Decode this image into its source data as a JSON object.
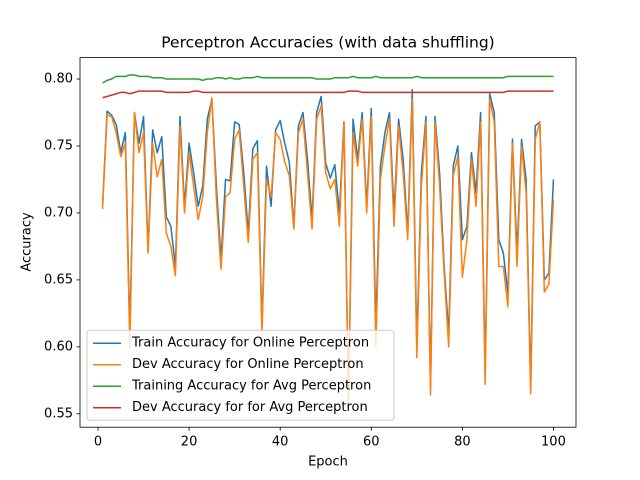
{
  "chart_data": {
    "type": "line",
    "title": "Perceptron Accuracies (with data shuffling)",
    "xlabel": "Epoch",
    "ylabel": "Accuracy",
    "x": [
      1,
      2,
      3,
      4,
      5,
      6,
      7,
      8,
      9,
      10,
      11,
      12,
      13,
      14,
      15,
      16,
      17,
      18,
      19,
      20,
      21,
      22,
      23,
      24,
      25,
      26,
      27,
      28,
      29,
      30,
      31,
      32,
      33,
      34,
      35,
      36,
      37,
      38,
      39,
      40,
      41,
      42,
      43,
      44,
      45,
      46,
      47,
      48,
      49,
      50,
      51,
      52,
      53,
      54,
      55,
      56,
      57,
      58,
      59,
      60,
      61,
      62,
      63,
      64,
      65,
      66,
      67,
      68,
      69,
      70,
      71,
      72,
      73,
      74,
      75,
      76,
      77,
      78,
      79,
      80,
      81,
      82,
      83,
      84,
      85,
      86,
      87,
      88,
      89,
      90,
      91,
      92,
      93,
      94,
      95,
      96,
      97,
      98,
      99,
      100
    ],
    "series": [
      {
        "name": "Train Accuracy for Online Perceptron",
        "color": "#1f77b4",
        "values": [
          0.705,
          0.776,
          0.773,
          0.766,
          0.745,
          0.76,
          0.61,
          0.775,
          0.752,
          0.772,
          0.672,
          0.762,
          0.745,
          0.757,
          0.697,
          0.69,
          0.66,
          0.772,
          0.705,
          0.752,
          0.73,
          0.705,
          0.72,
          0.77,
          0.785,
          0.72,
          0.665,
          0.725,
          0.724,
          0.768,
          0.766,
          0.73,
          0.685,
          0.748,
          0.754,
          0.615,
          0.735,
          0.705,
          0.762,
          0.769,
          0.752,
          0.738,
          0.69,
          0.765,
          0.775,
          0.74,
          0.695,
          0.775,
          0.787,
          0.737,
          0.726,
          0.736,
          0.7,
          0.768,
          0.56,
          0.77,
          0.74,
          0.775,
          0.705,
          0.778,
          0.615,
          0.735,
          0.76,
          0.775,
          0.7,
          0.77,
          0.74,
          0.685,
          0.792,
          0.6,
          0.73,
          0.772,
          0.57,
          0.772,
          0.73,
          0.66,
          0.61,
          0.735,
          0.75,
          0.68,
          0.69,
          0.745,
          0.715,
          0.775,
          0.58,
          0.789,
          0.775,
          0.68,
          0.67,
          0.64,
          0.755,
          0.67,
          0.755,
          0.725,
          0.57,
          0.765,
          0.768,
          0.65,
          0.655,
          0.725
        ]
      },
      {
        "name": "Dev Accuracy for Online Perceptron",
        "color": "#ff7f0e",
        "values": [
          0.703,
          0.773,
          0.772,
          0.76,
          0.742,
          0.752,
          0.6,
          0.775,
          0.745,
          0.76,
          0.67,
          0.752,
          0.727,
          0.74,
          0.685,
          0.675,
          0.653,
          0.765,
          0.7,
          0.745,
          0.72,
          0.695,
          0.712,
          0.76,
          0.786,
          0.71,
          0.658,
          0.712,
          0.715,
          0.755,
          0.762,
          0.72,
          0.678,
          0.74,
          0.745,
          0.61,
          0.725,
          0.712,
          0.76,
          0.755,
          0.738,
          0.728,
          0.688,
          0.76,
          0.77,
          0.73,
          0.688,
          0.77,
          0.78,
          0.73,
          0.718,
          0.725,
          0.69,
          0.768,
          0.555,
          0.76,
          0.735,
          0.77,
          0.7,
          0.772,
          0.6,
          0.725,
          0.75,
          0.77,
          0.69,
          0.765,
          0.73,
          0.68,
          0.785,
          0.592,
          0.72,
          0.768,
          0.564,
          0.768,
          0.72,
          0.655,
          0.6,
          0.728,
          0.742,
          0.652,
          0.68,
          0.74,
          0.705,
          0.768,
          0.572,
          0.785,
          0.768,
          0.66,
          0.66,
          0.63,
          0.752,
          0.66,
          0.75,
          0.715,
          0.565,
          0.755,
          0.768,
          0.641,
          0.647,
          0.71
        ]
      },
      {
        "name": "Training Accuracy for Avg Perceptron",
        "color": "#2ca02c",
        "values": [
          0.797,
          0.799,
          0.8,
          0.802,
          0.802,
          0.802,
          0.803,
          0.803,
          0.802,
          0.802,
          0.802,
          0.801,
          0.801,
          0.801,
          0.8,
          0.8,
          0.8,
          0.8,
          0.8,
          0.8,
          0.8,
          0.8,
          0.799,
          0.8,
          0.8,
          0.801,
          0.801,
          0.8,
          0.801,
          0.8,
          0.8,
          0.801,
          0.801,
          0.801,
          0.802,
          0.801,
          0.801,
          0.801,
          0.801,
          0.801,
          0.801,
          0.801,
          0.801,
          0.801,
          0.801,
          0.801,
          0.801,
          0.8,
          0.8,
          0.8,
          0.8,
          0.801,
          0.801,
          0.801,
          0.801,
          0.802,
          0.801,
          0.801,
          0.801,
          0.801,
          0.802,
          0.801,
          0.801,
          0.801,
          0.801,
          0.801,
          0.801,
          0.801,
          0.801,
          0.802,
          0.801,
          0.801,
          0.801,
          0.801,
          0.801,
          0.801,
          0.801,
          0.801,
          0.801,
          0.801,
          0.801,
          0.801,
          0.801,
          0.801,
          0.801,
          0.801,
          0.801,
          0.801,
          0.801,
          0.802,
          0.802,
          0.802,
          0.802,
          0.802,
          0.802,
          0.802,
          0.802,
          0.802,
          0.802,
          0.802
        ]
      },
      {
        "name": "Dev Accuracy for for Avg Perceptron",
        "color": "#d62728",
        "values": [
          0.786,
          0.787,
          0.788,
          0.789,
          0.79,
          0.79,
          0.789,
          0.79,
          0.791,
          0.791,
          0.791,
          0.791,
          0.791,
          0.791,
          0.79,
          0.79,
          0.79,
          0.79,
          0.79,
          0.79,
          0.791,
          0.791,
          0.79,
          0.79,
          0.79,
          0.79,
          0.79,
          0.79,
          0.79,
          0.79,
          0.79,
          0.79,
          0.79,
          0.79,
          0.79,
          0.79,
          0.79,
          0.79,
          0.79,
          0.79,
          0.79,
          0.79,
          0.79,
          0.79,
          0.79,
          0.79,
          0.79,
          0.79,
          0.79,
          0.79,
          0.79,
          0.79,
          0.79,
          0.79,
          0.791,
          0.791,
          0.791,
          0.79,
          0.79,
          0.79,
          0.79,
          0.79,
          0.79,
          0.79,
          0.79,
          0.79,
          0.79,
          0.79,
          0.79,
          0.79,
          0.79,
          0.79,
          0.79,
          0.79,
          0.79,
          0.79,
          0.79,
          0.79,
          0.79,
          0.79,
          0.79,
          0.79,
          0.79,
          0.79,
          0.79,
          0.79,
          0.79,
          0.79,
          0.79,
          0.791,
          0.791,
          0.791,
          0.791,
          0.791,
          0.791,
          0.791,
          0.791,
          0.791,
          0.791,
          0.791
        ]
      }
    ],
    "xlim": [
      -3.95,
      104.95
    ],
    "xticks": [
      0,
      20,
      40,
      60,
      80,
      100
    ],
    "ylim": [
      0.54,
      0.816
    ],
    "yticks": [
      0.55,
      {
        "value": 0.6,
        "label": "0.60"
      },
      0.65,
      {
        "value": 0.7,
        "label": "0.70"
      },
      0.75,
      {
        "value": 0.8,
        "label": "0.80"
      }
    ],
    "grid": false,
    "legend": "lower left"
  }
}
